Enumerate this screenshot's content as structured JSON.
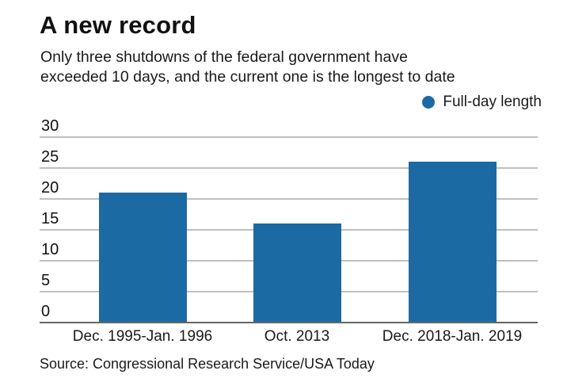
{
  "title": "A new record",
  "subtitle_lines": [
    "Only three shutdowns of the federal government have",
    "exceeded 10 days, and the current one is the longest to date"
  ],
  "legend": {
    "marker": "circle",
    "label": "Full-day length"
  },
  "source": "Source: Congressional Research Service/USA Today",
  "colors": {
    "bar": "#1c6aa3",
    "gridline": "#7f7f7f",
    "axis": "#666666",
    "text": "#1a1a1a"
  },
  "chart_data": {
    "type": "bar",
    "title": "A new record",
    "subtitle": "Only three shutdowns of the federal government have exceeded 10 days, and the current one is the longest to date",
    "categories": [
      "Dec. 1995-Jan. 1996",
      "Oct. 2013",
      "Dec. 2018-Jan. 2019"
    ],
    "series": [
      {
        "name": "Full-day length",
        "values": [
          21,
          16,
          26
        ]
      }
    ],
    "xlabel": "",
    "ylabel": "",
    "ylim": [
      0,
      30
    ],
    "yticks": [
      0,
      5,
      10,
      15,
      20,
      25,
      30
    ],
    "grid": true,
    "legend_position": "top-right",
    "source": "Source: Congressional Research Service/USA Today"
  }
}
